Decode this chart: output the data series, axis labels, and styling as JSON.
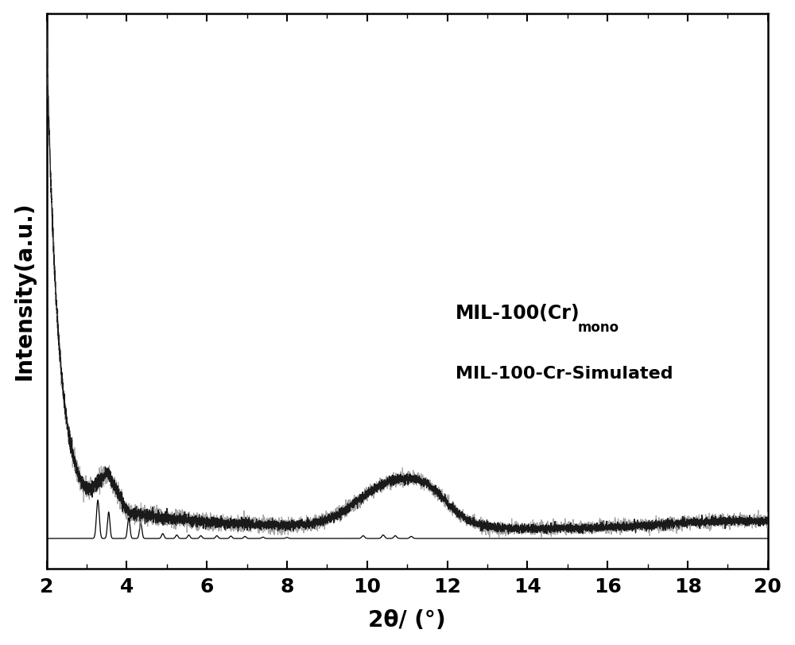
{
  "xlabel": "2θ/ (°)",
  "ylabel": "Intensity(a.u.)",
  "xlim": [
    2,
    20
  ],
  "label_mono_main": "MIL-100(Cr)",
  "label_mono_sub": "mono",
  "label_sim": "MIL-100-Cr-Simulated",
  "xticks": [
    2,
    4,
    6,
    8,
    10,
    12,
    14,
    16,
    18,
    20
  ],
  "line_color_mono_black": "#1a1a1a",
  "line_color_mono_gray": "#888888",
  "line_color_sim": "#000000",
  "background_color": "#ffffff",
  "xlabel_fontsize": 20,
  "ylabel_fontsize": 20,
  "tick_fontsize": 18,
  "annotation_fontsize": 17
}
